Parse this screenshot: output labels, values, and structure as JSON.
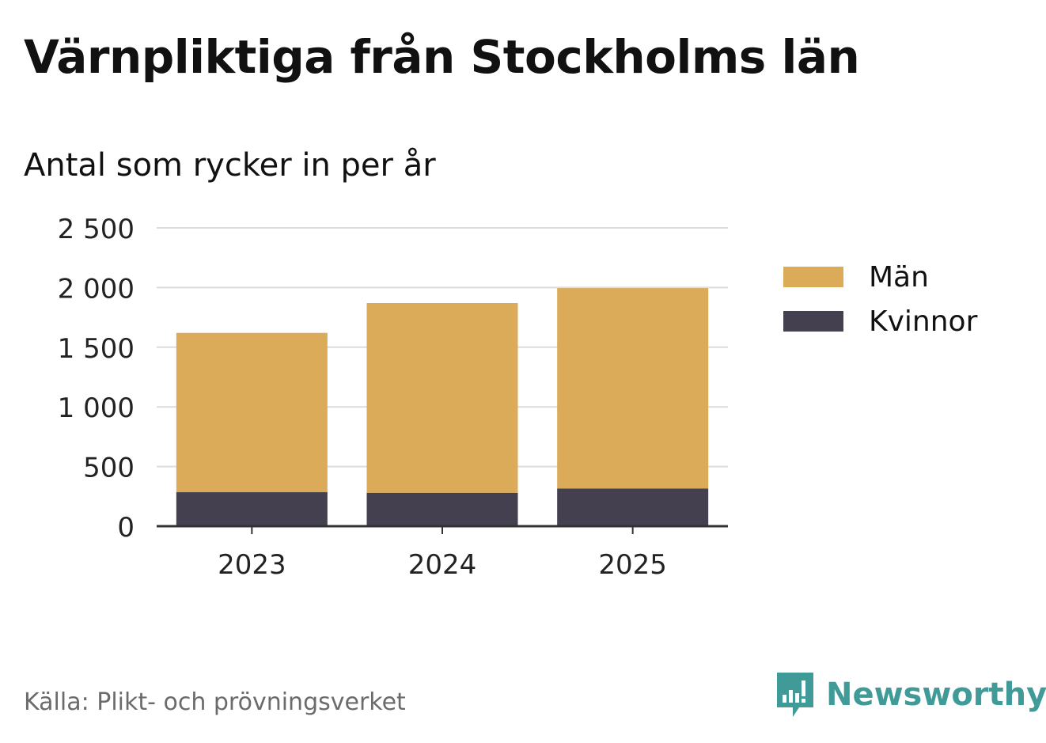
{
  "title": "Värnpliktiga från Stockholms län",
  "subtitle": "Antal som rycker in per år",
  "source": "Källa: Plikt- och prövningsverket",
  "brand": {
    "name": "Newsworthy",
    "icon": "newsworthy-logo-icon",
    "color": "#3f9a98"
  },
  "legend": [
    {
      "label": "Män",
      "color": "#dbab5a"
    },
    {
      "label": "Kvinnor",
      "color": "#44404f"
    }
  ],
  "chart_data": {
    "type": "bar",
    "stacked": true,
    "categories": [
      "2023",
      "2024",
      "2025"
    ],
    "series": [
      {
        "name": "Kvinnor",
        "color": "#44404f",
        "values": [
          285,
          280,
          315
        ]
      },
      {
        "name": "Män",
        "color": "#dbab5a",
        "values": [
          1335,
          1590,
          1680
        ]
      }
    ],
    "ylim": [
      0,
      2500
    ],
    "yticks": [
      0,
      500,
      1000,
      1500,
      2000,
      2500
    ],
    "ytick_labels": [
      "0",
      "500",
      "1 000",
      "1 500",
      "2 000",
      "2 500"
    ],
    "grid": true,
    "legend_position": "right",
    "title": "Värnpliktiga från Stockholms län",
    "ylabel": "",
    "xlabel": ""
  }
}
